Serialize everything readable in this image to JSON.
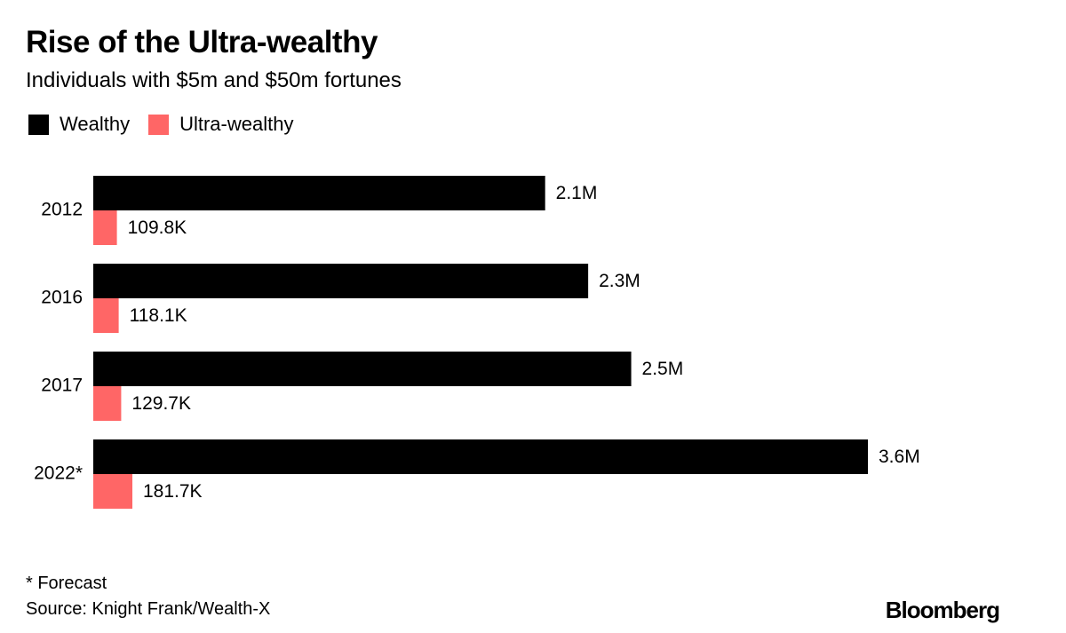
{
  "chart_data": {
    "type": "bar",
    "orientation": "horizontal",
    "title": "Rise of the Ultra-wealthy",
    "subtitle": "Individuals with $5m and $50m fortunes",
    "categories": [
      "2012",
      "2016",
      "2017",
      "2022*"
    ],
    "series": [
      {
        "name": "Wealthy",
        "color": "#000000",
        "values": [
          2100000,
          2300000,
          2500000,
          3600000
        ],
        "labels": [
          "2.1M",
          "2.3M",
          "2.5M",
          "3.6M"
        ]
      },
      {
        "name": "Ultra-wealthy",
        "color": "#ff6666",
        "values": [
          109800,
          118100,
          129700,
          181700
        ],
        "labels": [
          "109.8K",
          "118.1K",
          "129.7K",
          "181.7K"
        ]
      }
    ],
    "xlim": [
      0,
      3600000
    ],
    "grid": false,
    "legend": "top-left"
  },
  "footer": {
    "footnote": "* Forecast",
    "source": "Source: Knight Frank/Wealth-X",
    "brand": "Bloomberg"
  }
}
